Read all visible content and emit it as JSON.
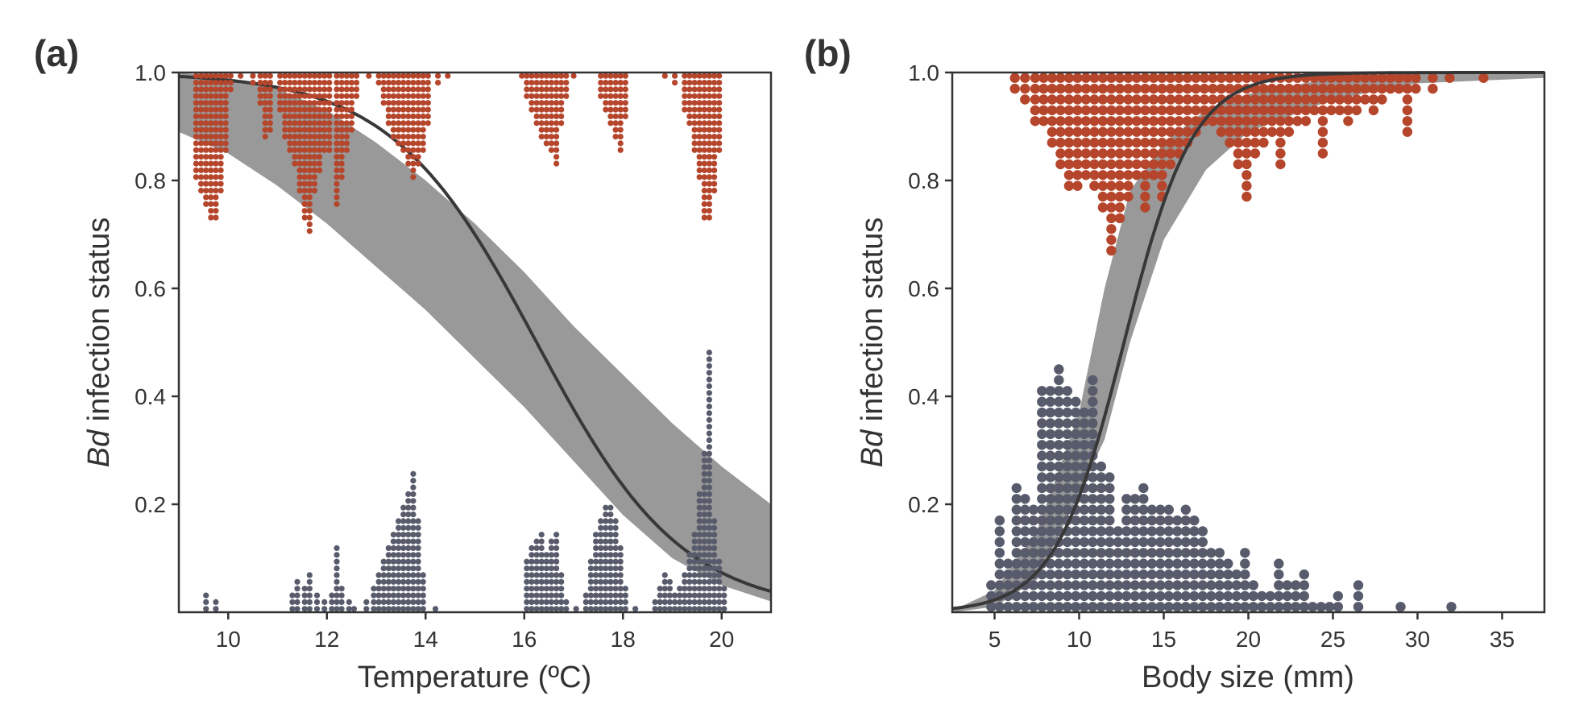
{
  "colors": {
    "infected": "#b5452b",
    "uninfected": "#575b6b",
    "band": "#999999",
    "fit": "#383838",
    "axis": "#333333"
  },
  "chart_data": [
    {
      "panel": "(a)",
      "type": "scatter",
      "xlabel": "Temperature (ºC)",
      "ylabel_italic": "Bd",
      "ylabel_rest": " infection status",
      "xlim": [
        9,
        21
      ],
      "ylim": [
        0,
        1
      ],
      "xticks": [
        10,
        12,
        14,
        16,
        18,
        20
      ],
      "yticks": [
        0.2,
        0.4,
        0.6,
        0.8,
        1.0
      ],
      "ytick_labels": [
        "0.2",
        "0.4",
        "0.6",
        "0.8",
        "1.0"
      ],
      "fit": {
        "intercept": 11.0,
        "slope": -0.6769
      },
      "band": [
        [
          9,
          0.89,
          1.0
        ],
        [
          10,
          0.85,
          0.99
        ],
        [
          11,
          0.79,
          0.97
        ],
        [
          12,
          0.72,
          0.93
        ],
        [
          13,
          0.64,
          0.87
        ],
        [
          14,
          0.56,
          0.8
        ],
        [
          15,
          0.47,
          0.72
        ],
        [
          16,
          0.38,
          0.63
        ],
        [
          17,
          0.28,
          0.53
        ],
        [
          18,
          0.18,
          0.44
        ],
        [
          19,
          0.1,
          0.35
        ],
        [
          20,
          0.05,
          0.27
        ],
        [
          21,
          0.02,
          0.2
        ]
      ],
      "dot_step": 0.0125,
      "series": [
        {
          "status": "infected",
          "columns": [
            [
              9.35,
              16
            ],
            [
              9.45,
              18
            ],
            [
              9.55,
              20
            ],
            [
              9.65,
              22
            ],
            [
              9.75,
              22
            ],
            [
              9.85,
              18
            ],
            [
              9.95,
              12
            ],
            [
              10.05,
              3
            ],
            [
              10.25,
              1
            ],
            [
              10.5,
              2
            ],
            [
              10.65,
              5
            ],
            [
              10.75,
              10
            ],
            [
              10.85,
              9
            ],
            [
              11.05,
              6
            ],
            [
              11.15,
              10
            ],
            [
              11.25,
              12
            ],
            [
              11.35,
              14
            ],
            [
              11.45,
              18
            ],
            [
              11.55,
              22
            ],
            [
              11.65,
              24
            ],
            [
              11.75,
              18
            ],
            [
              11.85,
              15
            ],
            [
              11.95,
              12
            ],
            [
              12.05,
              12
            ],
            [
              12.2,
              20
            ],
            [
              12.3,
              16
            ],
            [
              12.4,
              12
            ],
            [
              12.5,
              9
            ],
            [
              12.6,
              4
            ],
            [
              12.85,
              1
            ],
            [
              13.05,
              2
            ],
            [
              13.15,
              5
            ],
            [
              13.25,
              8
            ],
            [
              13.35,
              10
            ],
            [
              13.45,
              11
            ],
            [
              13.55,
              12
            ],
            [
              13.65,
              14
            ],
            [
              13.75,
              16
            ],
            [
              13.85,
              14
            ],
            [
              13.95,
              12
            ],
            [
              14.05,
              8
            ],
            [
              14.25,
              2
            ],
            [
              14.45,
              1
            ],
            [
              15.95,
              1
            ],
            [
              16.05,
              4
            ],
            [
              16.15,
              6
            ],
            [
              16.25,
              8
            ],
            [
              16.35,
              10
            ],
            [
              16.45,
              11
            ],
            [
              16.55,
              12
            ],
            [
              16.65,
              14
            ],
            [
              16.75,
              8
            ],
            [
              16.85,
              4
            ],
            [
              17.0,
              1
            ],
            [
              17.55,
              4
            ],
            [
              17.65,
              6
            ],
            [
              17.75,
              8
            ],
            [
              17.85,
              10
            ],
            [
              17.95,
              12
            ],
            [
              18.05,
              7
            ],
            [
              18.85,
              1
            ],
            [
              19.05,
              2
            ],
            [
              19.25,
              6
            ],
            [
              19.35,
              8
            ],
            [
              19.45,
              12
            ],
            [
              19.55,
              16
            ],
            [
              19.65,
              22
            ],
            [
              19.75,
              22
            ],
            [
              19.85,
              18
            ],
            [
              19.95,
              12
            ]
          ]
        },
        {
          "status": "uninfected",
          "columns": [
            [
              9.55,
              3
            ],
            [
              9.75,
              2
            ],
            [
              11.3,
              3
            ],
            [
              11.4,
              5
            ],
            [
              11.55,
              4
            ],
            [
              11.65,
              6
            ],
            [
              11.8,
              3
            ],
            [
              11.95,
              2
            ],
            [
              12.1,
              3
            ],
            [
              12.2,
              10
            ],
            [
              12.3,
              4
            ],
            [
              12.45,
              2
            ],
            [
              12.55,
              1
            ],
            [
              12.8,
              2
            ],
            [
              12.95,
              4
            ],
            [
              13.05,
              6
            ],
            [
              13.15,
              8
            ],
            [
              13.25,
              10
            ],
            [
              13.35,
              12
            ],
            [
              13.45,
              14
            ],
            [
              13.55,
              16
            ],
            [
              13.65,
              18
            ],
            [
              13.75,
              21
            ],
            [
              13.85,
              14
            ],
            [
              13.95,
              6
            ],
            [
              14.2,
              1
            ],
            [
              16.05,
              8
            ],
            [
              16.15,
              10
            ],
            [
              16.25,
              11
            ],
            [
              16.35,
              12
            ],
            [
              16.45,
              9
            ],
            [
              16.55,
              11
            ],
            [
              16.65,
              12
            ],
            [
              16.75,
              6
            ],
            [
              16.85,
              2
            ],
            [
              17.05,
              1
            ],
            [
              17.25,
              3
            ],
            [
              17.35,
              8
            ],
            [
              17.45,
              12
            ],
            [
              17.55,
              14
            ],
            [
              17.65,
              16
            ],
            [
              17.75,
              16
            ],
            [
              17.85,
              14
            ],
            [
              17.95,
              10
            ],
            [
              18.05,
              4
            ],
            [
              18.25,
              1
            ],
            [
              18.65,
              2
            ],
            [
              18.75,
              4
            ],
            [
              18.85,
              6
            ],
            [
              18.95,
              5
            ],
            [
              19.05,
              3
            ],
            [
              19.15,
              4
            ],
            [
              19.25,
              6
            ],
            [
              19.35,
              9
            ],
            [
              19.45,
              12
            ],
            [
              19.55,
              18
            ],
            [
              19.65,
              24
            ],
            [
              19.75,
              39
            ],
            [
              19.85,
              14
            ],
            [
              19.95,
              8
            ],
            [
              20.05,
              4
            ]
          ]
        }
      ]
    },
    {
      "panel": "(b)",
      "type": "scatter",
      "xlabel": "Body size (mm)",
      "ylabel_italic": "Bd",
      "ylabel_rest": " infection status",
      "xlim": [
        2.5,
        37.5
      ],
      "ylim": [
        0,
        1
      ],
      "xticks": [
        5,
        10,
        15,
        20,
        25,
        30,
        35
      ],
      "yticks": [
        0.2,
        0.4,
        0.6,
        0.8,
        1.0
      ],
      "ytick_labels": [
        "0.2",
        "0.4",
        "0.6",
        "0.8",
        "1.0"
      ],
      "fit": {
        "intercept": -6.2,
        "slope": 0.49
      },
      "band": [
        [
          2.5,
          0.0,
          0.003
        ],
        [
          5,
          0.01,
          0.04
        ],
        [
          7.5,
          0.06,
          0.15
        ],
        [
          10,
          0.22,
          0.37
        ],
        [
          11.5,
          0.32,
          0.6
        ],
        [
          13,
          0.5,
          0.78
        ],
        [
          15,
          0.69,
          0.87
        ],
        [
          17.5,
          0.82,
          0.93
        ],
        [
          20,
          0.89,
          0.96
        ],
        [
          25,
          0.95,
          0.99
        ],
        [
          30,
          0.98,
          1.0
        ],
        [
          37.5,
          0.99,
          1.0
        ]
      ],
      "dot_step": 0.02,
      "series": [
        {
          "status": "infected",
          "columns": [
            [
              6.2,
              2
            ],
            [
              6.8,
              3
            ],
            [
              7.4,
              5
            ],
            [
              7.9,
              5
            ],
            [
              8.4,
              7
            ],
            [
              8.9,
              9
            ],
            [
              9.4,
              11
            ],
            [
              9.9,
              11
            ],
            [
              10.4,
              10
            ],
            [
              10.9,
              11
            ],
            [
              11.4,
              13
            ],
            [
              11.9,
              17
            ],
            [
              12.4,
              14
            ],
            [
              12.9,
              12
            ],
            [
              13.4,
              10
            ],
            [
              13.9,
              13
            ],
            [
              14.4,
              10
            ],
            [
              14.9,
              12
            ],
            [
              15.4,
              9
            ],
            [
              15.9,
              8
            ],
            [
              16.4,
              7
            ],
            [
              16.9,
              6
            ],
            [
              17.4,
              5
            ],
            [
              17.9,
              5
            ],
            [
              18.4,
              6
            ],
            [
              18.9,
              7
            ],
            [
              19.4,
              9
            ],
            [
              19.9,
              12
            ],
            [
              20.4,
              8
            ],
            [
              20.9,
              7
            ],
            [
              21.4,
              6
            ],
            [
              21.9,
              9
            ],
            [
              22.4,
              6
            ],
            [
              22.9,
              5
            ],
            [
              23.4,
              5
            ],
            [
              23.9,
              4
            ],
            [
              24.4,
              8
            ],
            [
              24.9,
              4
            ],
            [
              25.4,
              4
            ],
            [
              25.9,
              5
            ],
            [
              26.4,
              4
            ],
            [
              26.9,
              3
            ],
            [
              27.4,
              4
            ],
            [
              27.9,
              3
            ],
            [
              28.4,
              2
            ],
            [
              28.9,
              2
            ],
            [
              29.4,
              6
            ],
            [
              29.9,
              2
            ],
            [
              30.9,
              2
            ],
            [
              31.9,
              1
            ],
            [
              33.9,
              1
            ]
          ]
        },
        {
          "status": "uninfected",
          "columns": [
            [
              4.8,
              3
            ],
            [
              5.3,
              9
            ],
            [
              5.8,
              5
            ],
            [
              6.3,
              12
            ],
            [
              6.8,
              11
            ],
            [
              7.3,
              10
            ],
            [
              7.8,
              21
            ],
            [
              8.3,
              21
            ],
            [
              8.8,
              23
            ],
            [
              9.3,
              21
            ],
            [
              9.8,
              20
            ],
            [
              10.3,
              19
            ],
            [
              10.8,
              22
            ],
            [
              11.3,
              14
            ],
            [
              11.8,
              13
            ],
            [
              12.3,
              8
            ],
            [
              12.8,
              11
            ],
            [
              13.3,
              11
            ],
            [
              13.8,
              12
            ],
            [
              14.3,
              10
            ],
            [
              14.8,
              10
            ],
            [
              15.3,
              10
            ],
            [
              15.8,
              9
            ],
            [
              16.3,
              10
            ],
            [
              16.8,
              9
            ],
            [
              17.3,
              8
            ],
            [
              17.8,
              6
            ],
            [
              18.3,
              6
            ],
            [
              18.8,
              5
            ],
            [
              19.3,
              4
            ],
            [
              19.8,
              6
            ],
            [
              20.3,
              3
            ],
            [
              20.8,
              2
            ],
            [
              21.3,
              2
            ],
            [
              21.8,
              5
            ],
            [
              22.3,
              3
            ],
            [
              22.8,
              3
            ],
            [
              23.3,
              4
            ],
            [
              23.8,
              1
            ],
            [
              24.3,
              1
            ],
            [
              24.8,
              1
            ],
            [
              25.3,
              2
            ],
            [
              26.5,
              3
            ],
            [
              29,
              1
            ],
            [
              32,
              1
            ]
          ]
        }
      ]
    }
  ]
}
